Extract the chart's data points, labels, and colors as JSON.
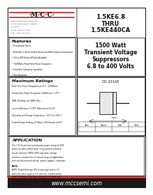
{
  "bg_color": "#ffffff",
  "red_color": "#bb2222",
  "dark_color": "#111111",
  "logo_text": "·M·C·C·",
  "company_lines": [
    "Micro Commercial Components",
    "20736 Marilla Street Chatsworth",
    "CA 91311",
    "Phone: (818) 701-4933",
    "Fax:    (818) 701-4939"
  ],
  "part_line1": "1.5KE6.8",
  "part_line2": "THRU",
  "part_line3": "1.5KE440CA",
  "sub_line1": "1500 Watt",
  "sub_line2": "Transient Voltage",
  "sub_line3": "Suppressors",
  "sub_line4": "6.8 to 400 Volts",
  "features_title": "Features",
  "features": [
    "Economical Series",
    "Available in Both Unidirectional and Bidirectional Construction",
    "6.8 to 400 Stand-off Volts Available",
    "1500Watts Peak Pulse Power Dissipation",
    "Excellent Clamping Capability",
    "Fast Response"
  ],
  "max_title": "Maximum Ratings",
  "max_ratings": [
    "Peak Pulse Power Dissipation at 25°C:  1500Watts",
    "Steady State Power Dissipation 5.0Watts at T₁=75°C",
    "IFSM: 200 Amps for VRRM, 8ms",
    "Junction/Maximum T=150° Bidirectional for 60°",
    "Operating and Storage Temperature: -55°C to +150°C",
    "Forward Surge Holding 200 Amps, 1/60 Second at 60°C"
  ],
  "app_title": "APPLICATION",
  "app_text": "The 1.5C Series has a peak pulse power rating of 1500 watts (tp=1ms millisecond). It can protect transient circuits found in CMOS, BTPs and other voltage sensitive components at a broad range of applications such as telecommunications, power supplies, computer, automotive and industrial equipment.",
  "note_text": "NOTE: Forward Voltage (VF) @ high amp level is 3.3 times the value equal to 3.5 volts min. (unidirectional only). For Bidirectional type having VF>3.0 volts add order. Max 30 leakage current is obtained. For Bidirectional part number.",
  "package_label": "DO-201AE",
  "table_cols": [
    "Reel",
    "Ammo",
    "Bulk",
    "Suffix"
  ],
  "website": "www.mccsemi.com"
}
